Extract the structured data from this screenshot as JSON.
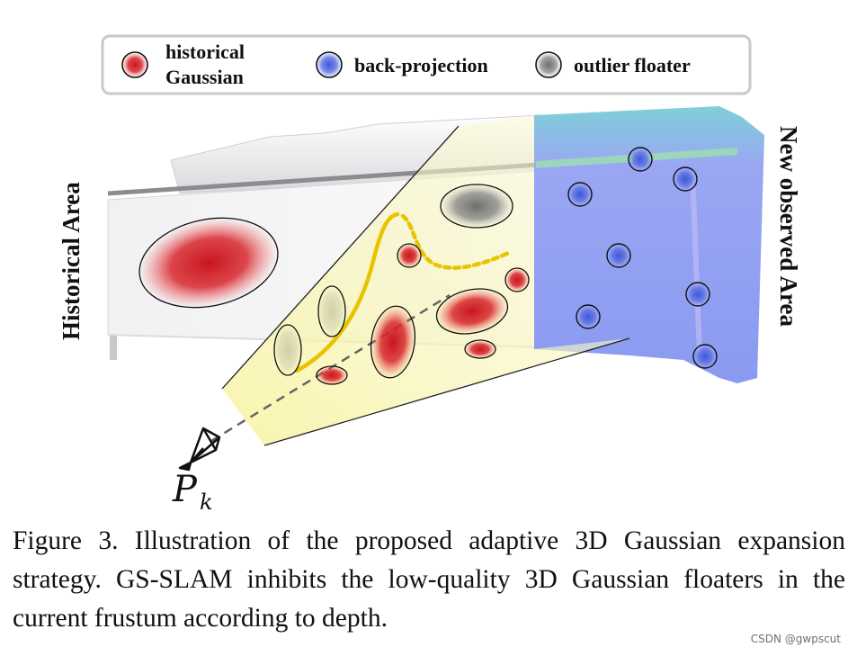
{
  "figure": {
    "legend": {
      "items": [
        {
          "line1": "historical",
          "line2": "Gaussian",
          "color": "#c8161d"
        },
        {
          "line1": "back-projection",
          "line2": "",
          "color": "#5a6fe0"
        },
        {
          "line1": "outlier floater",
          "line2": "",
          "color": "#8a8a8a"
        }
      ]
    },
    "labels": {
      "historical_area": "Historical Area",
      "new_observed_area": "New observed Area",
      "camera_main": "P",
      "camera_sub": "k"
    },
    "colors": {
      "historical_gaussian": "#c8161d",
      "back_projection": "#5a6fe0",
      "outlier_floater": "#8a8a8a",
      "frustum": "#f3ef9c",
      "depth_curve": "#e8c400",
      "new_area": "#8fa0f2"
    }
  },
  "caption": {
    "text": "Figure 3.  Illustration of the proposed adaptive 3D Gaussian expansion strategy. GS-SLAM inhibits the low-quality 3D Gaussian floaters in the current frustum according to depth."
  },
  "watermark": "CSDN @gwpscut"
}
